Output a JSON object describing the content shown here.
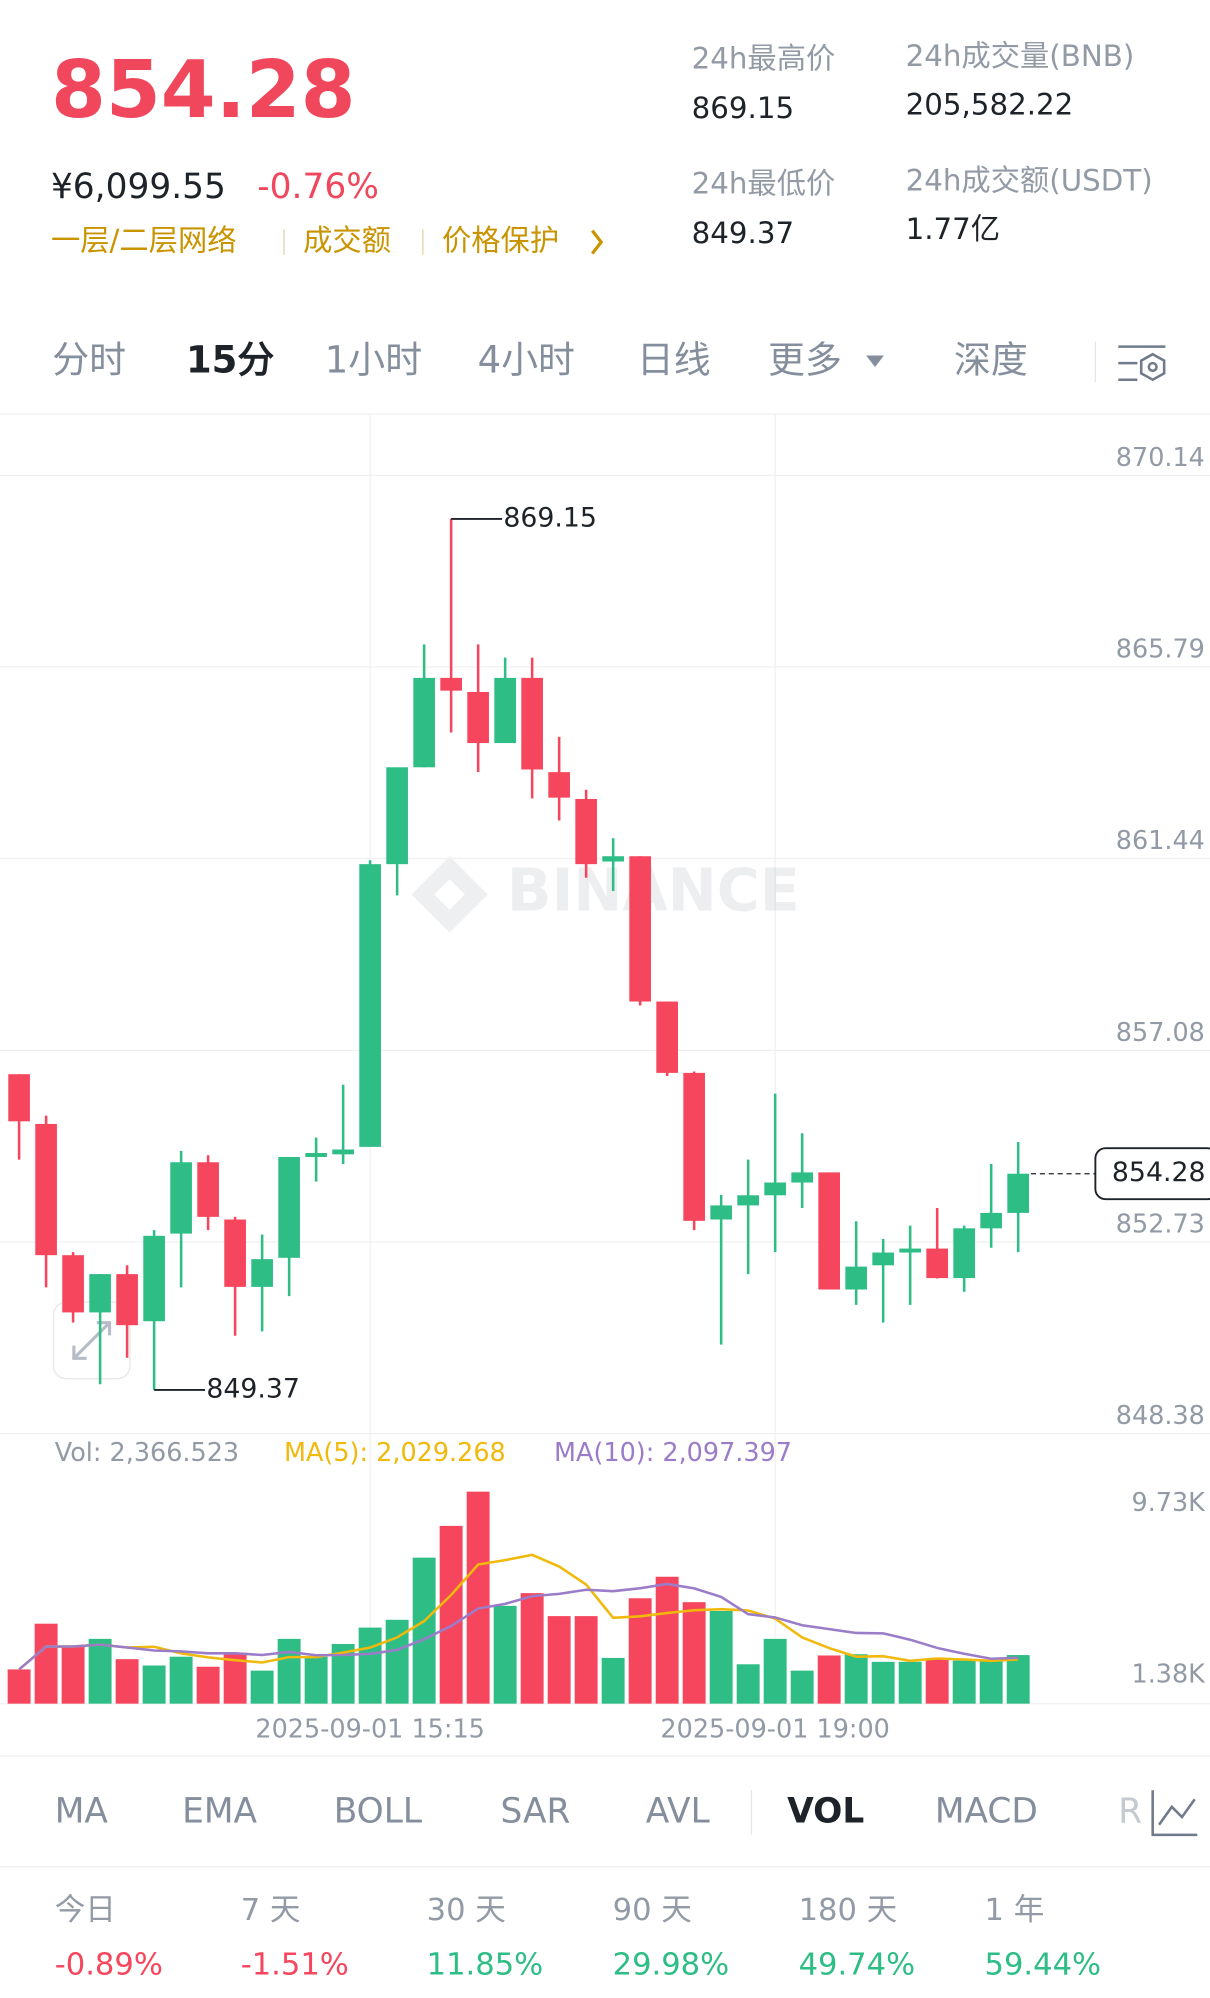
{
  "header": {
    "price": "854.28",
    "cny": "¥6,099.55",
    "change": "-0.76%",
    "links": [
      "一层/二层网络",
      "成交额",
      "价格保护"
    ],
    "stats": [
      {
        "label": "24h最高价",
        "value": "869.15"
      },
      {
        "label": "24h成交量(BNB)",
        "value": "205,582.22"
      },
      {
        "label": "24h最低价",
        "value": "849.37"
      },
      {
        "label": "24h成交额(USDT)",
        "value": "1.77亿"
      }
    ]
  },
  "tabs": {
    "items": [
      "分时",
      "15分",
      "1小时",
      "4小时",
      "日线",
      "更多",
      "深度"
    ],
    "active": 1
  },
  "chart_data": {
    "type": "candlestick",
    "watermark": "BINANCE",
    "ylim": [
      848.38,
      871.53
    ],
    "yticks": [
      870.14,
      865.79,
      861.44,
      857.08,
      852.73,
      848.38
    ],
    "high": 869.15,
    "low": 849.37,
    "last": 854.28,
    "up_color": "#2ebd85",
    "down_color": "#f6465d",
    "categories": [
      null,
      null,
      null,
      null,
      null,
      null,
      null,
      null,
      null,
      null,
      null,
      null,
      null,
      "2025-09-01 15:15",
      null,
      null,
      null,
      null,
      null,
      null,
      null,
      null,
      null,
      null,
      null,
      null,
      null,
      null,
      "2025-09-01 19:00",
      null,
      null,
      null,
      null,
      null,
      null,
      null,
      null,
      null
    ],
    "candles": [
      [
        856.54,
        856.54,
        854.6,
        855.47
      ],
      [
        855.41,
        855.6,
        851.7,
        852.43
      ],
      [
        852.43,
        852.5,
        850.9,
        851.13
      ],
      [
        851.13,
        852.0,
        849.5,
        852.0
      ],
      [
        852.0,
        852.2,
        850.1,
        850.84
      ],
      [
        850.93,
        853.0,
        849.37,
        852.87
      ],
      [
        852.92,
        854.8,
        851.7,
        854.54
      ],
      [
        854.54,
        854.7,
        853.0,
        853.3
      ],
      [
        853.24,
        853.3,
        850.6,
        851.71
      ],
      [
        851.71,
        852.9,
        850.7,
        852.34
      ],
      [
        852.37,
        854.66,
        851.5,
        854.66
      ],
      [
        854.66,
        855.1,
        854.1,
        854.75
      ],
      [
        854.72,
        856.3,
        854.5,
        854.83
      ],
      [
        854.89,
        861.4,
        854.89,
        861.31
      ],
      [
        861.31,
        863.5,
        860.6,
        863.51
      ],
      [
        863.51,
        866.3,
        863.51,
        865.54
      ],
      [
        865.54,
        869.15,
        864.3,
        865.25
      ],
      [
        865.22,
        866.3,
        863.4,
        864.06
      ],
      [
        864.06,
        866.0,
        864.06,
        865.54
      ],
      [
        865.54,
        866.0,
        862.8,
        863.46
      ],
      [
        863.4,
        864.2,
        862.3,
        862.82
      ],
      [
        862.79,
        863.0,
        861.0,
        861.31
      ],
      [
        861.37,
        861.9,
        860.7,
        861.49
      ],
      [
        861.49,
        861.49,
        858.1,
        858.19
      ],
      [
        858.19,
        858.19,
        856.5,
        856.57
      ],
      [
        856.57,
        856.6,
        853.0,
        853.21
      ],
      [
        853.24,
        853.8,
        850.4,
        853.56
      ],
      [
        853.56,
        854.6,
        852.0,
        853.79
      ],
      [
        853.79,
        856.1,
        852.5,
        854.08
      ],
      [
        854.08,
        855.2,
        853.5,
        854.31
      ],
      [
        854.31,
        854.31,
        851.65,
        851.65
      ],
      [
        851.65,
        853.2,
        851.3,
        852.17
      ],
      [
        852.2,
        852.8,
        850.9,
        852.49
      ],
      [
        852.49,
        853.1,
        851.3,
        852.58
      ],
      [
        852.58,
        853.5,
        851.9,
        851.91
      ],
      [
        851.91,
        853.1,
        851.6,
        853.04
      ],
      [
        853.04,
        854.5,
        852.6,
        853.39
      ],
      [
        853.39,
        855.0,
        852.5,
        854.28
      ]
    ],
    "volume": {
      "legend": [
        "Vol: 2,366.523",
        "MA(5): 2,029.268",
        "MA(10): 2,097.397"
      ],
      "ma5_color": "#f0b90b",
      "ma10_color": "#9b7cc8",
      "values": [
        1.67,
        3.9,
        2.79,
        3.16,
        2.17,
        1.86,
        2.29,
        1.8,
        2.48,
        1.61,
        3.16,
        2.29,
        2.91,
        3.71,
        4.09,
        7.12,
        8.67,
        10.34,
        4.77,
        5.39,
        4.27,
        4.27,
        2.23,
        5.14,
        6.19,
        4.95,
        4.52,
        1.92,
        3.16,
        1.61,
        2.35,
        2.41,
        2.04,
        2.04,
        2.17,
        2.1,
        2.1,
        2.37
      ],
      "ylim": [
        0,
        11
      ],
      "yticks": [
        {
          "value": 9.73,
          "label": "9.73K"
        },
        {
          "value": 1.38,
          "label": "1.38K"
        }
      ]
    }
  },
  "indicators": {
    "items": [
      "MA",
      "EMA",
      "BOLL",
      "SAR",
      "AVL",
      "VOL",
      "MACD",
      "R"
    ],
    "active": 5
  },
  "performance": [
    {
      "label": "今日",
      "value": "-0.89%",
      "color": "#f6465d"
    },
    {
      "label": "7 天",
      "value": "-1.51%",
      "color": "#f6465d"
    },
    {
      "label": "30 天",
      "value": "11.85%",
      "color": "#2ebd85"
    },
    {
      "label": "90 天",
      "value": "29.98%",
      "color": "#2ebd85"
    },
    {
      "label": "180 天",
      "value": "49.74%",
      "color": "#2ebd85"
    },
    {
      "label": "1 年",
      "value": "59.44%",
      "color": "#2ebd85"
    }
  ]
}
